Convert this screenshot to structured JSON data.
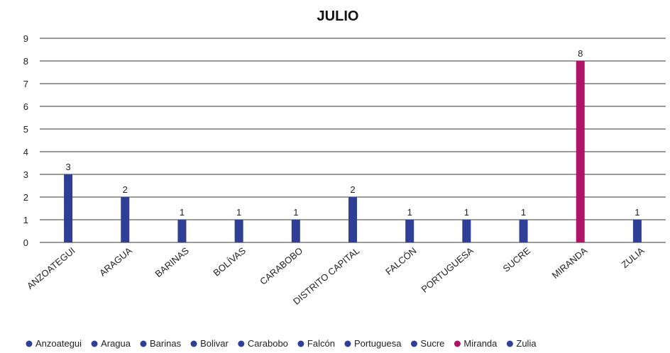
{
  "chart_data": {
    "type": "bar",
    "title": "JULIO",
    "xlabel": "",
    "ylabel": "",
    "ylim": [
      0,
      9
    ],
    "yticks": [
      0,
      1,
      2,
      3,
      4,
      5,
      6,
      7,
      8,
      9
    ],
    "grid": true,
    "legend_placement": "bottom",
    "categories": [
      "ANZOATEGUI",
      "ARAGUA",
      "BARINAS",
      "BOLÍVAS",
      "CARABOBO",
      "DISTRITO CAPITAL",
      "FALCÓN",
      "PORTUGUESA",
      "SUCRE",
      "MIRANDA",
      "ZULIA"
    ],
    "values": [
      3,
      2,
      1,
      1,
      1,
      2,
      1,
      1,
      1,
      8,
      1
    ],
    "data_labels": [
      "3",
      "2",
      "1",
      "1",
      "1",
      "2",
      "1",
      "1",
      "1",
      "8",
      "1"
    ],
    "bar_colors": [
      "#2e3f95",
      "#2e3f95",
      "#2e3f95",
      "#2e3f95",
      "#2e3f95",
      "#2e3f95",
      "#2e3f95",
      "#2e3f95",
      "#2e3f95",
      "#b01466",
      "#2e3f95"
    ],
    "legend": [
      {
        "label": "Anzoategui",
        "color": "#2e3f95"
      },
      {
        "label": "Aragua",
        "color": "#2e3f95"
      },
      {
        "label": "Barinas",
        "color": "#2e3f95"
      },
      {
        "label": "Bolivar",
        "color": "#2e3f95"
      },
      {
        "label": "Carabobo",
        "color": "#2e3f95"
      },
      {
        "label": "Falcón",
        "color": "#2e3f95"
      },
      {
        "label": "Portuguesa",
        "color": "#2e3f95"
      },
      {
        "label": "Sucre",
        "color": "#2e3f95"
      },
      {
        "label": "Miranda",
        "color": "#b01466"
      },
      {
        "label": "Zulia",
        "color": "#2e3f95"
      }
    ]
  }
}
